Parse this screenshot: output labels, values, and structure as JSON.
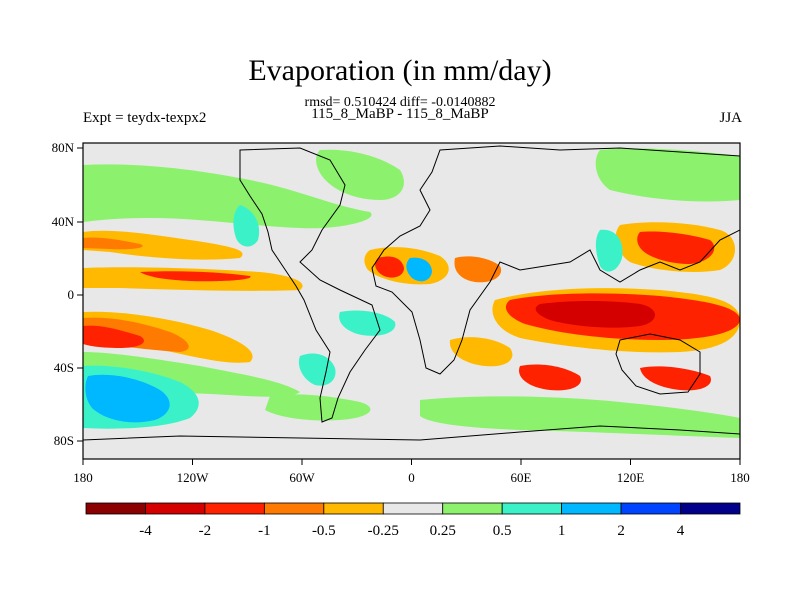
{
  "title": "Evaporation (in mm/day)",
  "stats_line": "rmsd= 0.510424 diff= -0.0140882",
  "case_line": "115_8_MaBP - 115_8_MaBP",
  "left_label": "Expt = teydx-texpx2",
  "right_label": "JJA",
  "map": {
    "lon_ticks": [
      "180",
      "120W",
      "60W",
      "0",
      "60E",
      "120E",
      "180"
    ],
    "lat_ticks": [
      "80N",
      "40N",
      "0",
      "40S",
      "80S"
    ]
  },
  "colorbar": {
    "colors": [
      "#8b0000",
      "#d40000",
      "#ff2200",
      "#ff7a00",
      "#ffb900",
      "#e8e8e8",
      "#8cf26e",
      "#3bf2c8",
      "#00b8ff",
      "#0044ff",
      "#00008b"
    ],
    "labels": [
      "-4",
      "-2",
      "-1",
      "-0.5",
      "-0.25",
      "0.25",
      "0.5",
      "1",
      "2",
      "4"
    ]
  }
}
